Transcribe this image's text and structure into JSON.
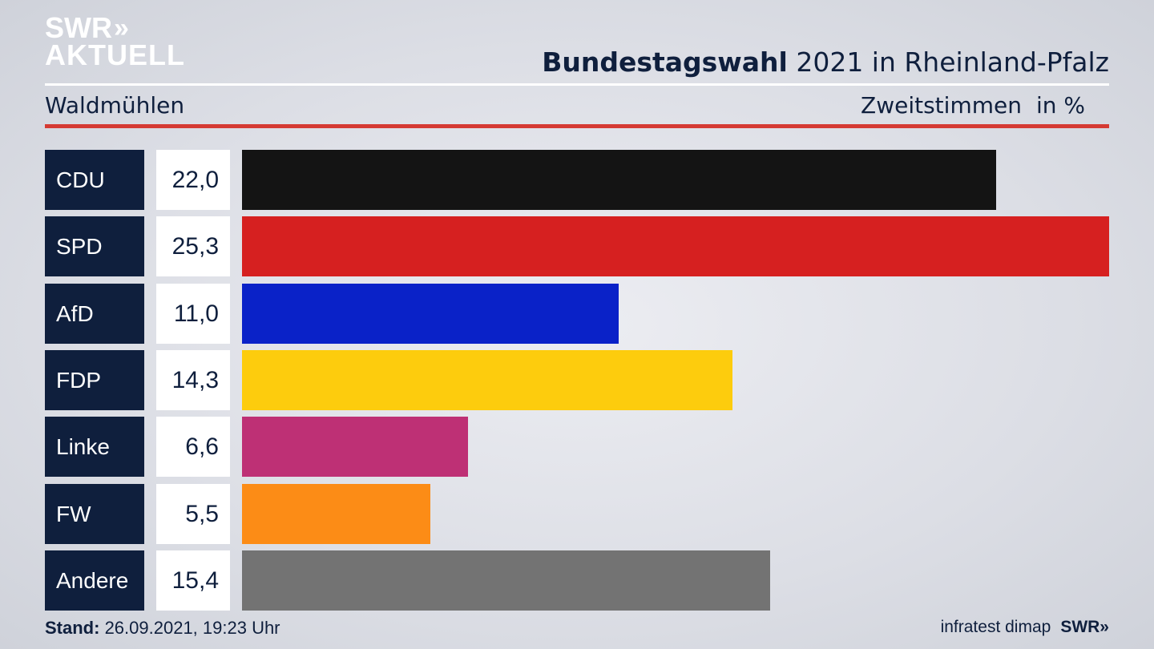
{
  "brand": {
    "line1": "SWR",
    "line1_arrows": "»",
    "line2": "AKTUELL"
  },
  "header": {
    "title_bold": "Bundestagswahl",
    "title_rest": " 2021 in Rheinland-Pfalz"
  },
  "subheader": {
    "location": "Waldmühlen",
    "metric": "Zweitstimmen",
    "unit": "in %"
  },
  "colors": {
    "CDU": "#141414",
    "SPD": "#d62020",
    "AfD": "#0a22c8",
    "FDP": "#fdcc0d",
    "Linke": "#be3075",
    "FW": "#fc8c16",
    "Andere": "#737373",
    "party_box": "#0f1f3d",
    "accent_rule": "#d53a33"
  },
  "chart_data": {
    "type": "bar",
    "orientation": "horizontal",
    "categories": [
      "CDU",
      "SPD",
      "AfD",
      "FDP",
      "Linke",
      "FW",
      "Andere"
    ],
    "values": [
      22.0,
      25.3,
      11.0,
      14.3,
      6.6,
      5.5,
      15.4
    ],
    "value_labels": [
      "22,0",
      "25,3",
      "11,0",
      "14,3",
      "6,6",
      "5,5",
      "15,4"
    ],
    "xmax": 25.3
  },
  "footer": {
    "stand_label": "Stand:",
    "stand_value": " 26.09.2021, 19:23 Uhr",
    "source": "infratest dimap",
    "brand": "SWR»"
  }
}
